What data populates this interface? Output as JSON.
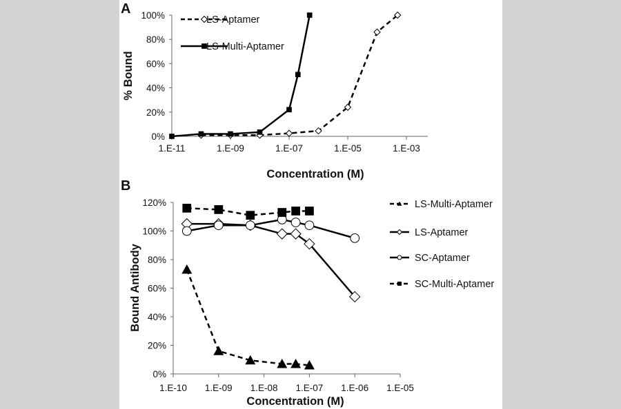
{
  "chart_data": [
    {
      "panel_label": "A",
      "type": "line",
      "xlabel": "Concentration (M)",
      "ylabel": "% Bound",
      "x_scale": "log",
      "x_tick_labels": [
        "1.E-11",
        "1.E-09",
        "1.E-07",
        "1.E-05",
        "1.E-03"
      ],
      "y_tick_labels": [
        "0%",
        "20%",
        "40%",
        "60%",
        "80%",
        "100%"
      ],
      "xlim": [
        1e-11,
        0.01
      ],
      "ylim": [
        0,
        100
      ],
      "grid": false,
      "legend_position": "top-left",
      "series": [
        {
          "name": "LS-Aptamer",
          "marker": "open-diamond",
          "line": "dashed",
          "color": "#000000",
          "x": [
            1e-10,
            1e-09,
            1e-08,
            1e-07,
            1e-06,
            1e-05,
            0.0001,
            0.0005
          ],
          "y": [
            1,
            1,
            1,
            2.5,
            4.5,
            24,
            86,
            100
          ]
        },
        {
          "name": "LS-Multi-Aptamer",
          "marker": "filled-square",
          "line": "solid",
          "color": "#000000",
          "x": [
            1e-11,
            1e-10,
            1e-09,
            1e-08,
            1e-07,
            2e-07,
            5e-07
          ],
          "y": [
            0,
            2,
            2,
            3.5,
            22,
            51,
            100
          ]
        }
      ]
    },
    {
      "panel_label": "B",
      "type": "line",
      "xlabel": "Concentration (M)",
      "ylabel": "Bound Antibody",
      "x_scale": "log",
      "x_tick_labels": [
        "1.E-10",
        "1.E-09",
        "1.E-08",
        "1.E-07",
        "1.E-06",
        "1.E-05"
      ],
      "y_tick_labels": [
        "0%",
        "20%",
        "40%",
        "60%",
        "80%",
        "100%",
        "120%"
      ],
      "xlim": [
        1e-10,
        1e-05
      ],
      "ylim": [
        0,
        120
      ],
      "grid": false,
      "legend_position": "right",
      "series": [
        {
          "name": "LS-Multi-Aptamer",
          "marker": "filled-triangle",
          "line": "dashed",
          "color": "#000000",
          "x": [
            2e-10,
            1e-09,
            5e-09,
            2.5e-08,
            5e-08,
            1e-07
          ],
          "y": [
            73,
            16,
            9.5,
            7,
            7,
            6
          ]
        },
        {
          "name": "LS-Aptamer",
          "marker": "open-diamond",
          "line": "solid",
          "color": "#000000",
          "x": [
            2e-10,
            1e-09,
            5e-09,
            2.5e-08,
            5e-08,
            1e-07,
            1e-06
          ],
          "y": [
            105,
            105,
            104,
            98,
            98,
            91,
            54
          ]
        },
        {
          "name": "SC-Aptamer",
          "marker": "open-circle",
          "line": "solid",
          "color": "#000000",
          "x": [
            2e-10,
            1e-09,
            5e-09,
            2.5e-08,
            5e-08,
            1e-07,
            1e-06
          ],
          "y": [
            100,
            104,
            104,
            108,
            106,
            104,
            95
          ]
        },
        {
          "name": "SC-Multi-Aptamer",
          "marker": "filled-square",
          "line": "dashed",
          "color": "#000000",
          "x": [
            2e-10,
            1e-09,
            5e-09,
            2.5e-08,
            5e-08,
            1e-07
          ],
          "y": [
            116,
            115,
            111,
            113,
            114,
            114
          ]
        }
      ]
    }
  ]
}
